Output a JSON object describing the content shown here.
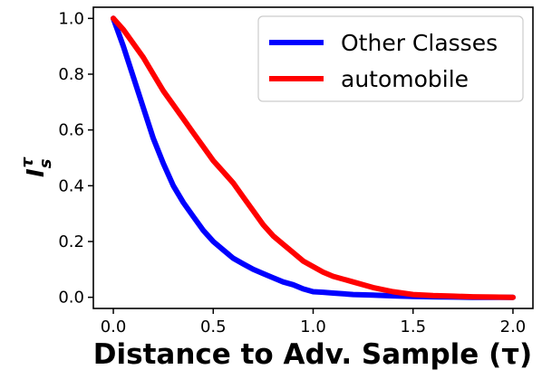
{
  "chart_data": {
    "type": "line",
    "title": "",
    "xlabel": "Distance to Adv. Sample (τ)",
    "ylabel_main": "I",
    "ylabel_sup": "τ",
    "ylabel_sub": "s",
    "xlim": [
      -0.1,
      2.1
    ],
    "ylim": [
      -0.04,
      1.04
    ],
    "xticks": [
      0.0,
      0.5,
      1.0,
      1.5,
      2.0
    ],
    "xtick_labels": [
      "0.0",
      "0.5",
      "1.0",
      "1.5",
      "2.0"
    ],
    "yticks": [
      0.0,
      0.2,
      0.4,
      0.6,
      0.8,
      1.0
    ],
    "ytick_labels": [
      "0.0",
      "0.2",
      "0.4",
      "0.6",
      "0.8",
      "1.0"
    ],
    "grid": false,
    "legend_position": "top-right",
    "series": [
      {
        "name": "Other Classes",
        "color": "#0000ff",
        "x": [
          0.0,
          0.05,
          0.1,
          0.15,
          0.2,
          0.25,
          0.3,
          0.35,
          0.4,
          0.45,
          0.5,
          0.55,
          0.6,
          0.65,
          0.7,
          0.75,
          0.8,
          0.85,
          0.9,
          0.95,
          1.0,
          1.05,
          1.1,
          1.2,
          1.3,
          1.4,
          1.5,
          1.6,
          1.7,
          1.8,
          1.9,
          2.0
        ],
        "y": [
          1.0,
          0.9,
          0.79,
          0.68,
          0.57,
          0.48,
          0.4,
          0.34,
          0.29,
          0.24,
          0.2,
          0.17,
          0.14,
          0.12,
          0.1,
          0.085,
          0.07,
          0.055,
          0.045,
          0.03,
          0.02,
          0.018,
          0.015,
          0.01,
          0.008,
          0.005,
          0.003,
          0.002,
          0.001,
          0.0,
          0.0,
          0.0
        ]
      },
      {
        "name": "automobile",
        "color": "#ff0000",
        "x": [
          0.0,
          0.05,
          0.1,
          0.15,
          0.2,
          0.25,
          0.3,
          0.35,
          0.4,
          0.45,
          0.5,
          0.55,
          0.6,
          0.65,
          0.7,
          0.75,
          0.8,
          0.85,
          0.9,
          0.95,
          1.0,
          1.05,
          1.1,
          1.2,
          1.3,
          1.4,
          1.5,
          1.6,
          1.7,
          1.8,
          1.9,
          2.0
        ],
        "y": [
          1.0,
          0.96,
          0.91,
          0.86,
          0.8,
          0.74,
          0.69,
          0.64,
          0.59,
          0.54,
          0.49,
          0.45,
          0.41,
          0.36,
          0.31,
          0.26,
          0.22,
          0.19,
          0.16,
          0.13,
          0.11,
          0.09,
          0.075,
          0.055,
          0.035,
          0.02,
          0.01,
          0.006,
          0.004,
          0.002,
          0.001,
          0.0
        ]
      }
    ]
  }
}
